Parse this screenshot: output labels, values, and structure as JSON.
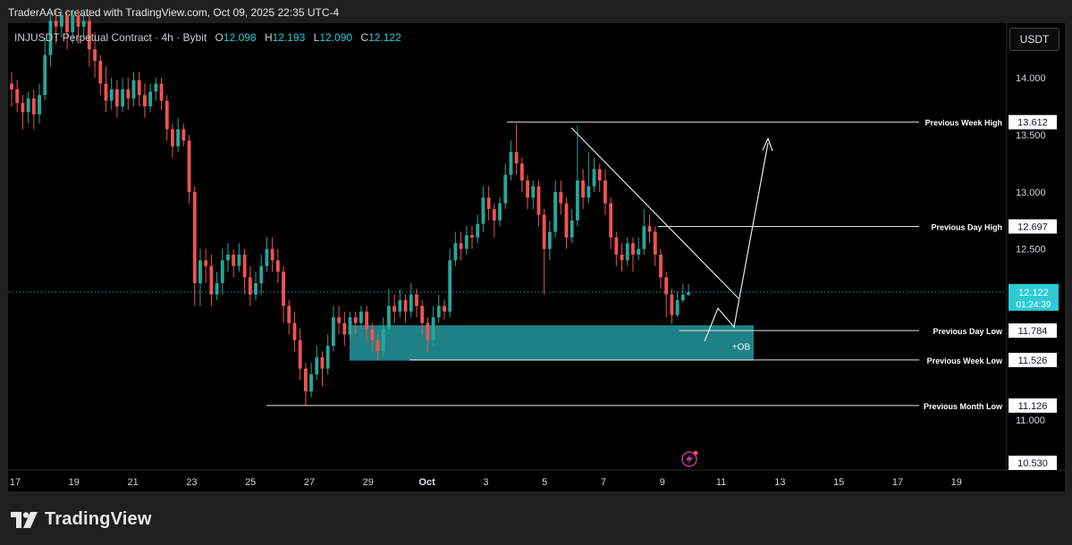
{
  "header": {
    "credit": "TraderAAG created with TradingView.com, Oct 09, 2025 22:35 UTC-4"
  },
  "symbol": {
    "name": "INJUSDT Perpetual Contract · 4h · Bybit",
    "o_label": "O",
    "o": "12.098",
    "h_label": "H",
    "h": "12.193",
    "l_label": "L",
    "l": "12.090",
    "c_label": "C",
    "c": "12.122"
  },
  "currency": "USDT",
  "branding": {
    "logo": "TradingView"
  },
  "colors": {
    "up": "#26a69a",
    "down": "#ef5350",
    "zone": "#27a0a8",
    "price": "#2ecbd5"
  },
  "chart_data": {
    "type": "candlestick",
    "ylim": [
      10.53,
      14.6
    ],
    "y_ticks": [
      "14.000",
      "13.500",
      "13.000",
      "12.500",
      "11.000"
    ],
    "x_ticks": [
      "17",
      "19",
      "21",
      "23",
      "25",
      "27",
      "29",
      "Oct",
      "3",
      "5",
      "7",
      "9",
      "11",
      "13",
      "15",
      "17",
      "19"
    ],
    "current_price": {
      "value": "12.122",
      "countdown": "01:24:39"
    },
    "bottom_label": "10.530",
    "levels": [
      {
        "name": "Previous Week High",
        "value": "13.612"
      },
      {
        "name": "Previous Day High",
        "value": "12.697"
      },
      {
        "name": "Previous Day Low",
        "value": "11.784"
      },
      {
        "name": "Previous Week Low",
        "value": "11.526"
      },
      {
        "name": "Previous Month Low",
        "value": "11.126"
      }
    ],
    "zone": {
      "label": "+OB",
      "top": 11.83,
      "bottom": 11.52
    },
    "candles": [
      [
        13.95,
        13.9,
        14.05,
        13.75
      ],
      [
        13.9,
        13.78,
        13.98,
        13.7
      ],
      [
        13.78,
        13.7,
        13.85,
        13.55
      ],
      [
        13.7,
        13.82,
        13.88,
        13.6
      ],
      [
        13.82,
        13.68,
        13.9,
        13.55
      ],
      [
        13.68,
        13.85,
        13.95,
        13.6
      ],
      [
        13.85,
        14.2,
        14.35,
        13.8
      ],
      [
        14.2,
        14.5,
        14.6,
        14.1
      ],
      [
        14.5,
        14.45,
        14.6,
        14.3
      ],
      [
        14.45,
        14.55,
        14.6,
        14.35
      ],
      [
        14.55,
        14.4,
        14.6,
        14.25
      ],
      [
        14.4,
        14.55,
        14.6,
        14.3
      ],
      [
        14.55,
        14.45,
        14.6,
        14.3
      ],
      [
        14.45,
        14.5,
        14.6,
        14.35
      ],
      [
        14.5,
        14.25,
        14.6,
        14.1
      ],
      [
        14.25,
        14.15,
        14.4,
        14.0
      ],
      [
        14.15,
        13.95,
        14.2,
        13.85
      ],
      [
        13.95,
        13.8,
        14.1,
        13.7
      ],
      [
        13.8,
        13.9,
        14.0,
        13.72
      ],
      [
        13.9,
        13.75,
        13.98,
        13.65
      ],
      [
        13.75,
        13.9,
        14.0,
        13.7
      ],
      [
        13.9,
        13.82,
        14.0,
        13.72
      ],
      [
        13.82,
        13.98,
        14.05,
        13.75
      ],
      [
        13.98,
        13.85,
        14.05,
        13.75
      ],
      [
        13.85,
        13.75,
        13.95,
        13.65
      ],
      [
        13.75,
        13.88,
        13.95,
        13.7
      ],
      [
        13.88,
        13.95,
        14.0,
        13.8
      ],
      [
        13.95,
        13.8,
        14.0,
        13.72
      ],
      [
        13.8,
        13.55,
        13.85,
        13.45
      ],
      [
        13.55,
        13.4,
        13.6,
        13.3
      ],
      [
        13.4,
        13.55,
        13.65,
        13.35
      ],
      [
        13.55,
        13.45,
        13.6,
        13.4
      ],
      [
        13.45,
        13.0,
        13.5,
        12.9
      ],
      [
        13.0,
        12.2,
        13.05,
        12.0
      ],
      [
        12.2,
        12.4,
        12.5,
        12.0
      ],
      [
        12.4,
        12.35,
        12.5,
        12.2
      ],
      [
        12.35,
        12.1,
        12.45,
        12.0
      ],
      [
        12.1,
        12.2,
        12.3,
        12.05
      ],
      [
        12.2,
        12.4,
        12.5,
        12.1
      ],
      [
        12.4,
        12.45,
        12.55,
        12.3
      ],
      [
        12.45,
        12.35,
        12.5,
        12.25
      ],
      [
        12.35,
        12.45,
        12.55,
        12.3
      ],
      [
        12.45,
        12.25,
        12.5,
        12.1
      ],
      [
        12.25,
        12.1,
        12.35,
        12.0
      ],
      [
        12.1,
        12.2,
        12.3,
        12.05
      ],
      [
        12.2,
        12.35,
        12.45,
        12.1
      ],
      [
        12.35,
        12.5,
        12.6,
        12.3
      ],
      [
        12.5,
        12.4,
        12.6,
        12.3
      ],
      [
        12.4,
        12.3,
        12.5,
        12.2
      ],
      [
        12.3,
        12.0,
        12.35,
        11.85
      ],
      [
        12.0,
        11.85,
        12.05,
        11.75
      ],
      [
        11.85,
        11.7,
        11.95,
        11.6
      ],
      [
        11.7,
        11.45,
        11.8,
        11.35
      ],
      [
        11.45,
        11.25,
        11.5,
        11.13
      ],
      [
        11.25,
        11.4,
        11.5,
        11.2
      ],
      [
        11.4,
        11.55,
        11.65,
        11.35
      ],
      [
        11.55,
        11.45,
        11.6,
        11.3
      ],
      [
        11.45,
        11.65,
        11.75,
        11.4
      ],
      [
        11.65,
        11.9,
        12.0,
        11.6
      ],
      [
        11.9,
        11.85,
        12.0,
        11.75
      ],
      [
        11.85,
        11.75,
        11.95,
        11.65
      ],
      [
        11.75,
        11.9,
        11.95,
        11.7
      ],
      [
        11.9,
        11.85,
        11.95,
        11.75
      ],
      [
        11.85,
        11.95,
        12.0,
        11.8
      ],
      [
        11.95,
        11.8,
        12.0,
        11.7
      ],
      [
        11.8,
        11.7,
        11.85,
        11.6
      ],
      [
        11.7,
        11.6,
        11.75,
        11.52
      ],
      [
        11.6,
        11.8,
        11.9,
        11.55
      ],
      [
        11.8,
        12.0,
        12.15,
        11.75
      ],
      [
        12.0,
        11.95,
        12.1,
        11.85
      ],
      [
        11.95,
        12.05,
        12.15,
        11.9
      ],
      [
        12.05,
        11.95,
        12.1,
        11.85
      ],
      [
        11.95,
        12.1,
        12.2,
        11.9
      ],
      [
        12.1,
        12.0,
        12.15,
        11.9
      ],
      [
        12.0,
        11.85,
        12.05,
        11.75
      ],
      [
        11.85,
        11.7,
        11.9,
        11.6
      ],
      [
        11.7,
        11.9,
        12.0,
        11.65
      ],
      [
        11.9,
        12.0,
        12.1,
        11.85
      ],
      [
        12.0,
        11.95,
        12.05,
        11.88
      ],
      [
        11.95,
        12.4,
        12.5,
        11.9
      ],
      [
        12.4,
        12.55,
        12.65,
        12.35
      ],
      [
        12.55,
        12.5,
        12.65,
        12.4
      ],
      [
        12.5,
        12.62,
        12.7,
        12.45
      ],
      [
        12.62,
        12.6,
        12.7,
        12.5
      ],
      [
        12.6,
        12.72,
        12.8,
        12.55
      ],
      [
        12.72,
        12.95,
        13.05,
        12.65
      ],
      [
        12.95,
        12.85,
        13.05,
        12.75
      ],
      [
        12.85,
        12.75,
        12.9,
        12.6
      ],
      [
        12.75,
        12.9,
        12.95,
        12.7
      ],
      [
        12.9,
        13.15,
        13.25,
        12.85
      ],
      [
        13.15,
        13.35,
        13.45,
        13.1
      ],
      [
        13.35,
        13.25,
        13.6,
        13.15
      ],
      [
        13.25,
        13.1,
        13.3,
        13.0
      ],
      [
        13.1,
        12.95,
        13.15,
        12.85
      ],
      [
        12.95,
        13.05,
        13.1,
        12.85
      ],
      [
        13.05,
        12.8,
        13.1,
        12.7
      ],
      [
        12.8,
        12.5,
        12.85,
        12.1
      ],
      [
        12.5,
        12.65,
        12.75,
        12.4
      ],
      [
        12.65,
        13.0,
        13.1,
        12.6
      ],
      [
        13.0,
        12.9,
        13.1,
        12.8
      ],
      [
        12.9,
        12.6,
        12.95,
        12.5
      ],
      [
        12.6,
        12.75,
        12.85,
        12.55
      ],
      [
        12.75,
        13.1,
        13.58,
        12.7
      ],
      [
        13.1,
        12.95,
        13.2,
        12.85
      ],
      [
        12.95,
        13.05,
        13.35,
        12.9
      ],
      [
        13.05,
        13.2,
        13.3,
        13.0
      ],
      [
        13.2,
        13.1,
        13.25,
        13.0
      ],
      [
        13.1,
        12.9,
        13.2,
        12.8
      ],
      [
        12.9,
        12.6,
        12.95,
        12.5
      ],
      [
        12.6,
        12.45,
        12.65,
        12.35
      ],
      [
        12.45,
        12.4,
        12.55,
        12.3
      ],
      [
        12.4,
        12.55,
        12.6,
        12.35
      ],
      [
        12.55,
        12.45,
        12.6,
        12.3
      ],
      [
        12.45,
        12.5,
        12.6,
        12.4
      ],
      [
        12.5,
        12.7,
        12.85,
        12.45
      ],
      [
        12.7,
        12.65,
        12.8,
        12.55
      ],
      [
        12.65,
        12.45,
        12.7,
        12.35
      ],
      [
        12.45,
        12.25,
        12.5,
        12.15
      ],
      [
        12.25,
        12.1,
        12.3,
        11.9
      ],
      [
        12.1,
        11.92,
        12.15,
        11.84
      ],
      [
        11.92,
        12.05,
        12.12,
        11.9
      ],
      [
        12.05,
        12.1,
        12.19,
        12.03
      ],
      [
        12.098,
        12.122,
        12.193,
        12.09
      ]
    ]
  }
}
